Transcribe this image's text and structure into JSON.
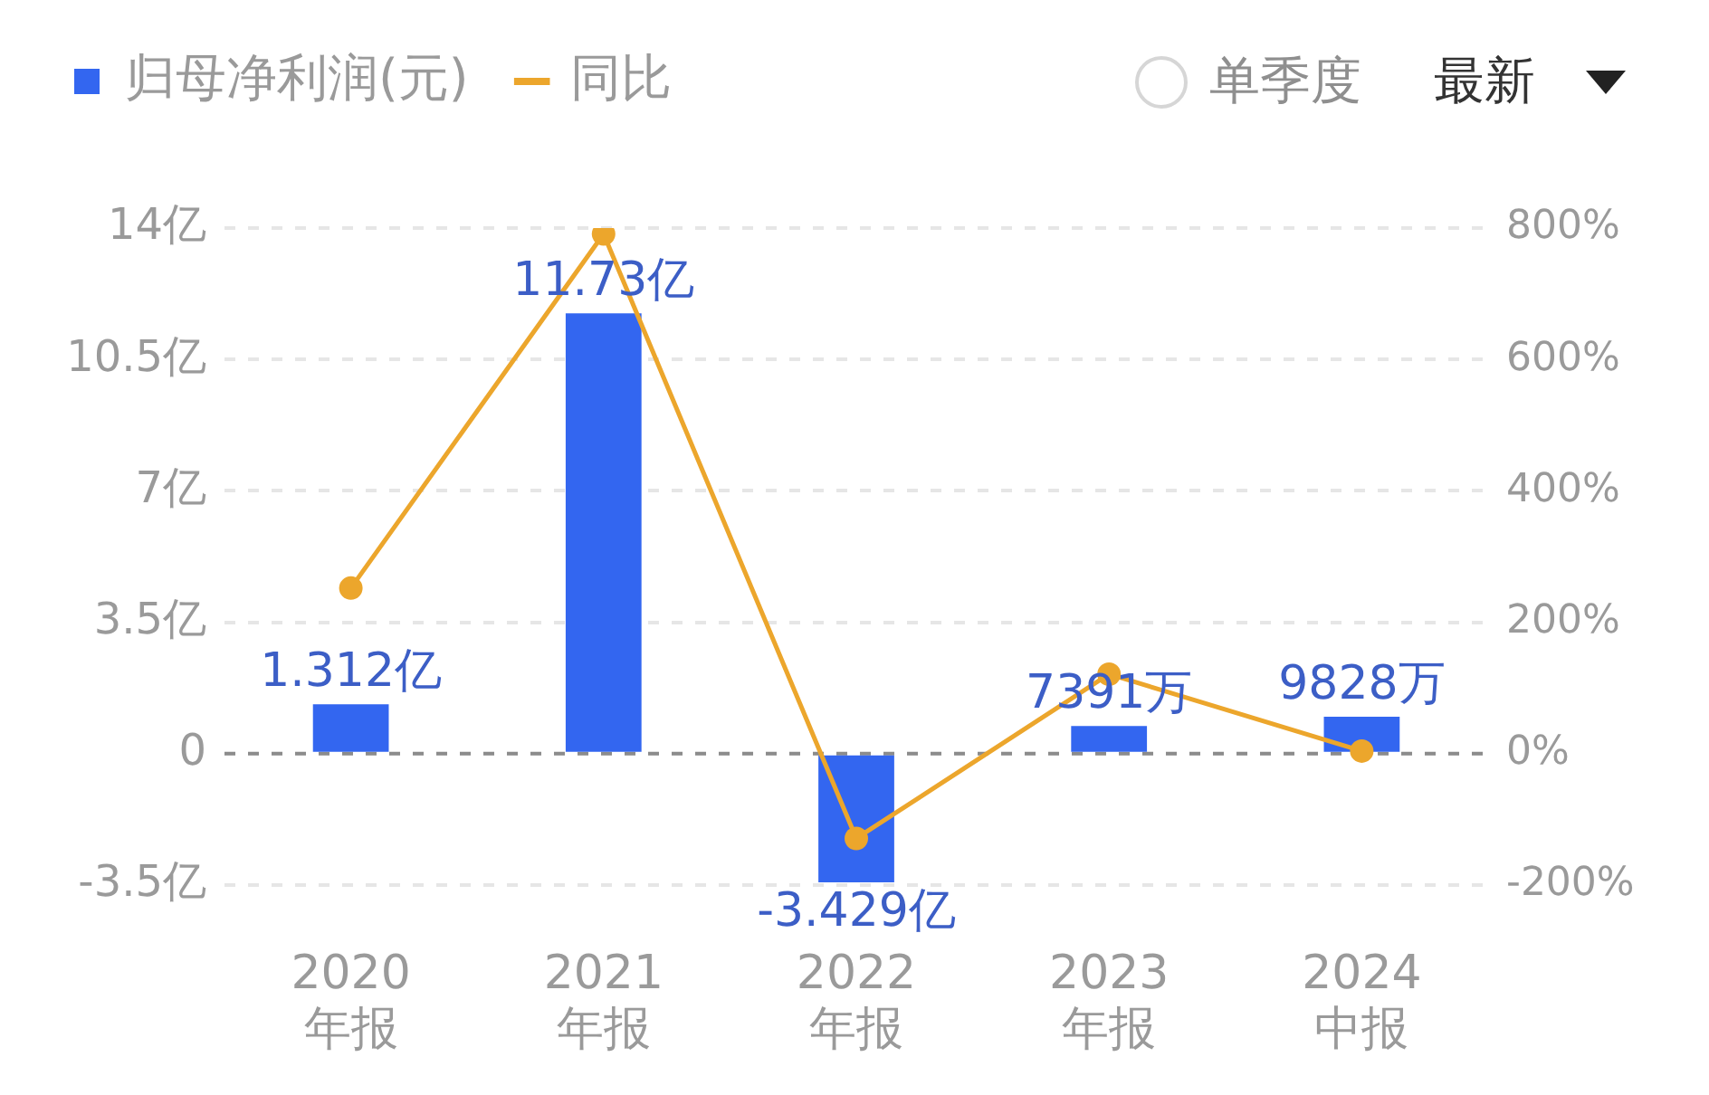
{
  "chart_data": {
    "type": "bar",
    "categories": [
      "2020\n年报",
      "2021\n年报",
      "2022\n年报",
      "2023\n年报",
      "2024\n中报"
    ],
    "series": [
      {
        "name": "归母净利润(元)",
        "color": "#3366f0",
        "values": [
          1.312,
          11.73,
          -3.429,
          0.7391,
          0.9828
        ],
        "value_labels": [
          "1.312亿",
          "11.73亿",
          "-3.429亿",
          null,
          null
        ]
      },
      {
        "name": "同比",
        "type": "line",
        "axis": "y2",
        "color": "#eca62c",
        "values": [
          252,
          791,
          -129,
          121,
          4
        ]
      }
    ],
    "ylim": [
      -3.5,
      14
    ],
    "yticks": [
      {
        "value": -3.5,
        "label": "-3.5亿"
      },
      0,
      {
        "value": 3.5,
        "label": "3.5亿"
      },
      {
        "value": 7,
        "label": "7亿"
      },
      {
        "value": 10.5,
        "label": "10.5亿"
      },
      {
        "value": 14,
        "label": "14亿"
      }
    ],
    "y2lim": [
      -200,
      800
    ],
    "y2ticks": [
      {
        "value": -200,
        "label": "-200%"
      },
      {
        "value": 0,
        "label": "0%"
      },
      {
        "value": 200,
        "label": "200%"
      },
      {
        "value": 400,
        "label": "400%"
      },
      {
        "value": 600,
        "label": "600%"
      },
      {
        "value": 800,
        "label": "800%"
      }
    ],
    "ref_lines": [
      {
        "axis": "y",
        "value": 0,
        "color": "#8c8c8c",
        "line_style": "dashed"
      }
    ],
    "grid": "y",
    "legend": "top left",
    "marker": "circle",
    "annotations": [
      "单季度",
      "最新",
      {
        "text": "7391万",
        "x": "2023\n年报",
        "y": 0.7391
      },
      {
        "text": "9828万",
        "x": "2024\n中报",
        "y": 0.9828
      }
    ]
  }
}
